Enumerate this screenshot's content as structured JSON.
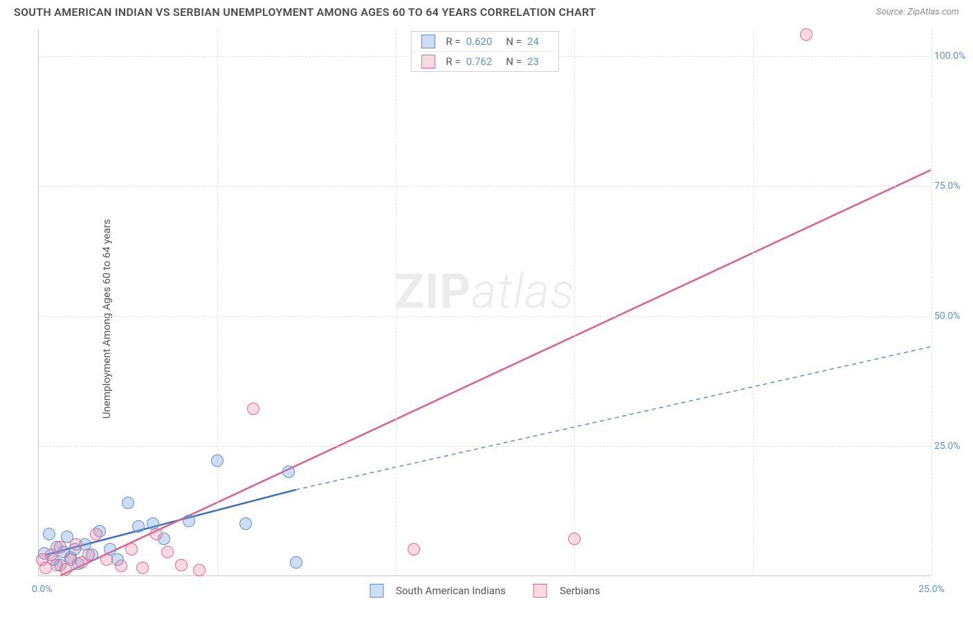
{
  "header": {
    "title": "SOUTH AMERICAN INDIAN VS SERBIAN UNEMPLOYMENT AMONG AGES 60 TO 64 YEARS CORRELATION CHART",
    "source": "Source: ZipAtlas.com"
  },
  "y_axis_label": "Unemployment Among Ages 60 to 64 years",
  "watermark": {
    "zip": "ZIP",
    "atlas": "atlas"
  },
  "chart": {
    "type": "scatter",
    "background_color": "#ffffff",
    "grid_color": "#e3e3e3",
    "axis_color": "#c8c8c8",
    "tick_label_color": "#5b8fd6",
    "tick_label_fontsize": 14,
    "xlim": [
      0,
      25
    ],
    "ylim": [
      0,
      105
    ],
    "x_ticks": [
      5,
      10,
      15,
      20,
      25
    ],
    "x_tick_labels": [
      "",
      "",
      "",
      "",
      "25.0%"
    ],
    "x_origin_label": "0.0%",
    "y_ticks": [
      25,
      50,
      75,
      100
    ],
    "y_tick_labels": [
      "25.0%",
      "50.0%",
      "75.0%",
      "100.0%"
    ],
    "series": [
      {
        "name": "South American Indians",
        "legend_label": "South American Indians",
        "color_fill": "rgba(110,160,220,0.35)",
        "color_stroke": "#5a8fd0",
        "marker_size": 18,
        "r_value": "0.620",
        "n_value": "24",
        "trend": {
          "solid": {
            "x1": 0.2,
            "y1": 4.0,
            "x2": 7.2,
            "y2": 16.5,
            "color": "#3a6fc8",
            "width": 2.5
          },
          "dashed": {
            "x1": 7.2,
            "y1": 16.5,
            "x2": 25.0,
            "y2": 44.0,
            "color": "#5a8fd0",
            "width": 1.5,
            "dash": "6,5"
          }
        },
        "points": [
          {
            "x": 0.15,
            "y": 4.2
          },
          {
            "x": 0.3,
            "y": 8.0
          },
          {
            "x": 0.4,
            "y": 3.0
          },
          {
            "x": 0.5,
            "y": 5.5
          },
          {
            "x": 0.6,
            "y": 2.0
          },
          {
            "x": 0.7,
            "y": 4.5
          },
          {
            "x": 0.8,
            "y": 7.5
          },
          {
            "x": 0.9,
            "y": 3.5
          },
          {
            "x": 1.0,
            "y": 5.0
          },
          {
            "x": 1.1,
            "y": 2.2
          },
          {
            "x": 1.3,
            "y": 6.0
          },
          {
            "x": 1.5,
            "y": 4.0
          },
          {
            "x": 1.7,
            "y": 8.5
          },
          {
            "x": 2.0,
            "y": 5.0
          },
          {
            "x": 2.2,
            "y": 3.0
          },
          {
            "x": 2.5,
            "y": 14.0
          },
          {
            "x": 2.8,
            "y": 9.5
          },
          {
            "x": 3.2,
            "y": 10.0
          },
          {
            "x": 3.5,
            "y": 7.0
          },
          {
            "x": 4.2,
            "y": 10.5
          },
          {
            "x": 5.0,
            "y": 22.0
          },
          {
            "x": 5.8,
            "y": 10.0
          },
          {
            "x": 7.0,
            "y": 20.0
          },
          {
            "x": 7.2,
            "y": 2.5
          }
        ]
      },
      {
        "name": "Serbians",
        "legend_label": "Serbians",
        "color_fill": "rgba(235,130,160,0.30)",
        "color_stroke": "#e06a8e",
        "marker_size": 18,
        "r_value": "0.762",
        "n_value": "23",
        "trend": {
          "solid": {
            "x1": 0.6,
            "y1": 0.0,
            "x2": 25.0,
            "y2": 78.0,
            "color": "#e85a88",
            "width": 2.5
          }
        },
        "points": [
          {
            "x": 0.1,
            "y": 3.0
          },
          {
            "x": 0.2,
            "y": 1.5
          },
          {
            "x": 0.35,
            "y": 4.0
          },
          {
            "x": 0.5,
            "y": 2.0
          },
          {
            "x": 0.6,
            "y": 5.5
          },
          {
            "x": 0.75,
            "y": 1.2
          },
          {
            "x": 0.9,
            "y": 3.0
          },
          {
            "x": 1.05,
            "y": 6.0
          },
          {
            "x": 1.2,
            "y": 2.5
          },
          {
            "x": 1.4,
            "y": 4.0
          },
          {
            "x": 1.6,
            "y": 8.0
          },
          {
            "x": 1.9,
            "y": 3.0
          },
          {
            "x": 2.3,
            "y": 1.8
          },
          {
            "x": 2.6,
            "y": 5.0
          },
          {
            "x": 2.9,
            "y": 1.5
          },
          {
            "x": 3.3,
            "y": 8.0
          },
          {
            "x": 3.6,
            "y": 4.5
          },
          {
            "x": 4.0,
            "y": 2.0
          },
          {
            "x": 4.5,
            "y": 1.0
          },
          {
            "x": 6.0,
            "y": 32.0
          },
          {
            "x": 10.5,
            "y": 5.0
          },
          {
            "x": 15.0,
            "y": 7.0
          },
          {
            "x": 21.5,
            "y": 104.0
          }
        ]
      }
    ]
  },
  "legend_top": {
    "r_label": "R =",
    "n_label": "N ="
  }
}
